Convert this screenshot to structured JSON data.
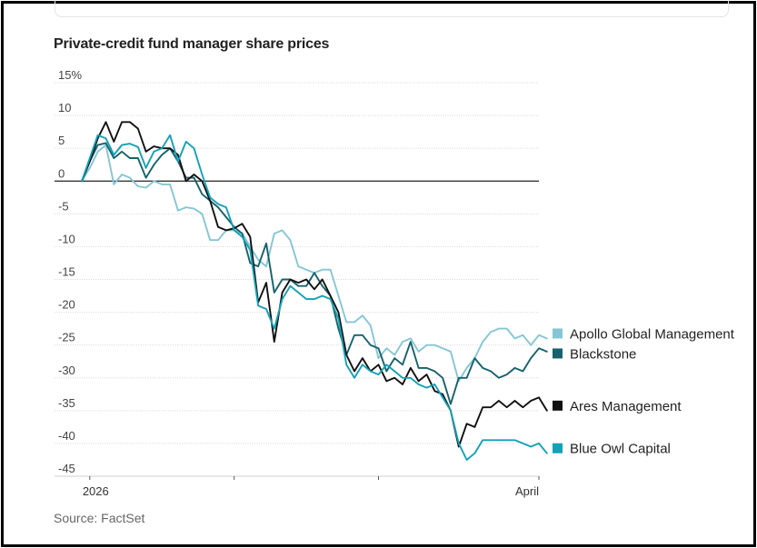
{
  "chart_data": {
    "type": "line",
    "title": "Private-credit fund manager share prices",
    "source": "Source: FactSet",
    "xlabel": "",
    "ylabel": "",
    "ylim": [
      -45,
      15
    ],
    "yticks": [
      15,
      10,
      5,
      0,
      -5,
      -10,
      -15,
      -20,
      -25,
      -30,
      -35,
      -40,
      -45
    ],
    "ytick_labels": [
      "15%",
      "10",
      "5",
      "0",
      "-5",
      "-10",
      "-15",
      "-20",
      "-25",
      "-30",
      "-35",
      "-40",
      "-45"
    ],
    "x_range": [
      0,
      57
    ],
    "x_tick_positions": [
      1,
      19,
      37,
      57
    ],
    "x_labels": [
      {
        "label": "2026",
        "x": 1
      },
      {
        "label": "April",
        "x": 57
      }
    ],
    "series": [
      {
        "name": "Apollo Global Management",
        "color": "#85c6d4",
        "values": [
          0,
          2,
          4.5,
          5.5,
          -0.5,
          1,
          0.5,
          -0.8,
          -1,
          0,
          -0.5,
          -0.5,
          -4.5,
          -4,
          -4.2,
          -5,
          -9,
          -9,
          -7.5,
          -7.5,
          -8,
          -10,
          -12,
          -13,
          -8,
          -7.5,
          -9,
          -13,
          -13.5,
          -14,
          -13.5,
          -13.5,
          -17.5,
          -21.5,
          -21.5,
          -20.5,
          -22,
          -27,
          -25.5,
          -26.5,
          -24.5,
          -24,
          -26,
          -25,
          -25,
          -25.5,
          -26,
          -30.5,
          -28.5,
          -27,
          -24.5,
          -23,
          -22.5,
          -22.5,
          -24,
          -23.5,
          -25,
          -23.5,
          -24
        ]
      },
      {
        "name": "Blackstone",
        "color": "#16626c",
        "values": [
          0,
          3,
          5.5,
          5.8,
          3.5,
          4.5,
          3.5,
          3.5,
          0.5,
          2.5,
          4,
          5,
          3,
          0.5,
          0.5,
          -2,
          -3,
          -4,
          -5.5,
          -7,
          -8,
          -12.5,
          -13,
          -9.5,
          -17,
          -15,
          -15,
          -16,
          -16,
          -14,
          -16,
          -17.5,
          -22.5,
          -26.5,
          -23.5,
          -23.5,
          -25,
          -25.5,
          -29,
          -27,
          -28,
          -24.5,
          -28.5,
          -28.5,
          -29,
          -30,
          -34,
          -30,
          -30,
          -27,
          -28.5,
          -29,
          -30,
          -29.5,
          -28.5,
          -29,
          -27,
          -25.5,
          -26
        ]
      },
      {
        "name": "Ares Management",
        "color": "#111111",
        "values": [
          0,
          3,
          6.5,
          9,
          6,
          9,
          9,
          8,
          4.5,
          5.3,
          5,
          5,
          4,
          0,
          1,
          0,
          -3,
          -7,
          -7.5,
          -7.2,
          -6.5,
          -8.5,
          -18.5,
          -15.5,
          -24.5,
          -17,
          -15,
          -15.5,
          -15,
          -16.5,
          -15,
          -17.5,
          -20,
          -26.5,
          -29,
          -27,
          -29,
          -28,
          -30.5,
          -30,
          -31,
          -28.5,
          -30.5,
          -29.5,
          -32,
          -32.5,
          -35,
          -40.5,
          -37,
          -37.5,
          -34.5,
          -34.5,
          -33.5,
          -34.5,
          -33.5,
          -34.5,
          -33.5,
          -33,
          -35
        ]
      },
      {
        "name": "Blue Owl Capital",
        "color": "#14a1b7",
        "values": [
          0,
          3.5,
          7,
          6.5,
          4,
          5.5,
          5.7,
          5.2,
          2,
          4.5,
          5,
          7,
          3,
          6,
          5,
          1,
          -2.5,
          -3.5,
          -4,
          -7.5,
          -8.5,
          -10.5,
          -19,
          -19.5,
          -22.5,
          -18,
          -16,
          -17,
          -18,
          -18,
          -17.5,
          -18,
          -21,
          -28,
          -30,
          -28,
          -29,
          -29.5,
          -28,
          -29,
          -30,
          -30,
          -31,
          -31.5,
          -31,
          -33,
          -35,
          -40,
          -42.5,
          -41.5,
          -39.5,
          -39.5,
          -39.5,
          -39.5,
          -39.5,
          -40,
          -40.5,
          -40,
          -41.5
        ]
      }
    ]
  }
}
